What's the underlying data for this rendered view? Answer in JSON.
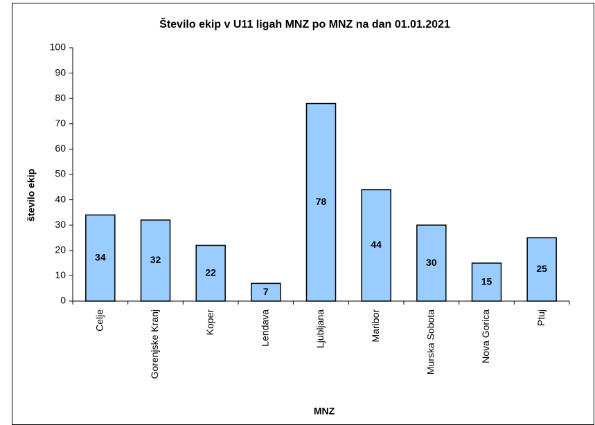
{
  "chart_data": {
    "type": "bar",
    "title": "Število ekip v U11 ligah MNZ po MNZ na dan 01.01.2021",
    "x_label": "MNZ",
    "y_label": "število ekip",
    "categories": [
      "Celje",
      "Gorenjske Kranj",
      "Koper",
      "Lendava",
      "Ljubljana",
      "Maribor",
      "Murska Sobota",
      "Nova Gorica",
      "Ptuj"
    ],
    "values": [
      34,
      32,
      22,
      7,
      78,
      44,
      30,
      15,
      25
    ],
    "color": "#99ccff",
    "ylim": [
      0,
      100
    ],
    "yticks": [
      0,
      10,
      20,
      30,
      40,
      50,
      60,
      70,
      80,
      90,
      100
    ],
    "grid": false
  }
}
